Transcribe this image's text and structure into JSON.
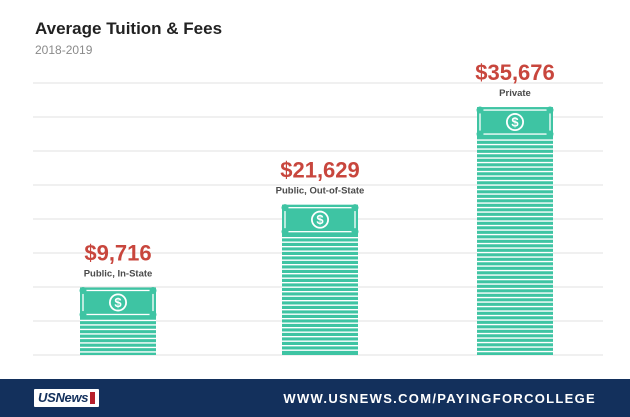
{
  "colors": {
    "bar": "#3ec4a3",
    "bar_stripe": "#ffffff",
    "value_text": "#c8463d",
    "grid": "#e2e2e2",
    "footer_bg": "#13305c"
  },
  "chart_data": {
    "type": "bar",
    "title": "Average Tuition & Fees",
    "subtitle": "2018-2019",
    "categories": [
      "Public, In-State",
      "Public, Out-of-State",
      "Private"
    ],
    "values": [
      9716,
      21629,
      35676
    ],
    "value_labels": [
      "$9,716",
      "$21,629",
      "$35,676"
    ],
    "xlabel": "",
    "ylabel": "",
    "ylim": [
      0,
      40000
    ],
    "grid": true,
    "legend": "none",
    "bar_icon": "dollar-bill-icon"
  },
  "footer": {
    "logo_text_a": "US",
    "logo_text_b": "News",
    "url": "WWW.USNEWS.COM/PAYINGFORCOLLEGE"
  }
}
